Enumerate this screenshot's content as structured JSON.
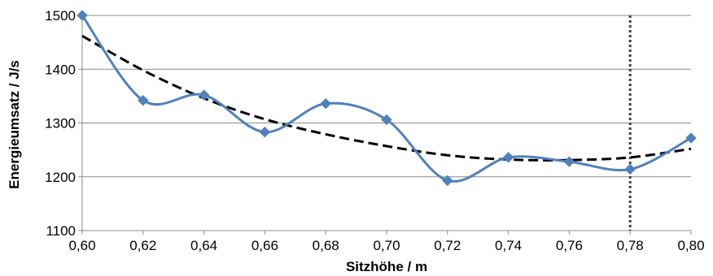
{
  "chart_data": {
    "type": "line",
    "title": "",
    "xlabel": "Sitzhöhe / m",
    "ylabel": "Energieumsatz / J/s",
    "xlim": [
      0.6,
      0.8
    ],
    "ylim": [
      1100,
      1500
    ],
    "x_ticks": [
      "0,60",
      "0,62",
      "0,64",
      "0,66",
      "0,68",
      "0,70",
      "0,72",
      "0,74",
      "0,76",
      "0,78",
      "0,80"
    ],
    "y_ticks": [
      "1100",
      "1200",
      "1300",
      "1400",
      "1500"
    ],
    "grid": "horizontal",
    "legend": "none",
    "series": [
      {
        "style": "smoothed line with diamond markers",
        "color": "#4F81BD",
        "x": [
          0.6,
          0.62,
          0.64,
          0.66,
          0.68,
          0.7,
          0.72,
          0.74,
          0.76,
          0.78,
          0.8
        ],
        "y": [
          1500,
          1342,
          1352,
          1283,
          1336,
          1306,
          1193,
          1236,
          1228,
          1214,
          1272
        ]
      },
      {
        "style": "dashed trend line",
        "color": "#000000",
        "x": [
          0.6,
          0.62,
          0.64,
          0.66,
          0.68,
          0.7,
          0.72,
          0.74,
          0.76,
          0.78,
          0.8
        ],
        "y": [
          1462,
          1398,
          1346,
          1307,
          1279,
          1257,
          1240,
          1232,
          1231,
          1236,
          1252
        ]
      }
    ],
    "vertical_marker": {
      "x": 0.78,
      "style": "dotted",
      "color": "#404040"
    }
  }
}
